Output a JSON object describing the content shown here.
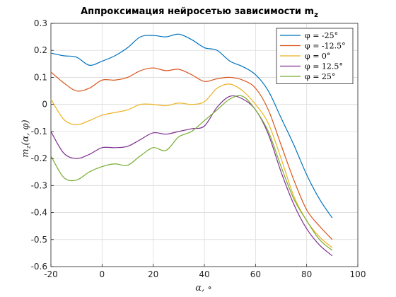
{
  "chart_data": {
    "type": "line",
    "title": "Аппроксимация нейросетью зависимости m",
    "title_subscript": "z",
    "xlabel": "α, ∘",
    "ylabel": "m",
    "ylabel_subscript": "z",
    "ylabel_args": "(α, φ)",
    "xlim": [
      -20,
      100
    ],
    "ylim": [
      -0.6,
      0.3
    ],
    "xticks": [
      -20,
      0,
      20,
      40,
      60,
      80,
      100
    ],
    "xtick_labels": [
      "-20",
      "0",
      "20",
      "40",
      "60",
      "80",
      "100"
    ],
    "yticks": [
      -0.6,
      -0.5,
      -0.4,
      -0.3,
      -0.2,
      -0.1,
      0,
      0.1,
      0.2,
      0.3
    ],
    "ytick_labels": [
      "-0.6",
      "-0.5",
      "-0.4",
      "-0.3",
      "-0.2",
      "-0.1",
      "0",
      "0.1",
      "0.2",
      "0.3"
    ],
    "grid": true,
    "legend_position": "top-right",
    "x": [
      -20,
      -15,
      -10,
      -5,
      0,
      5,
      10,
      15,
      20,
      25,
      30,
      35,
      40,
      45,
      50,
      55,
      60,
      65,
      70,
      75,
      80,
      85,
      90
    ],
    "series": [
      {
        "name": "φ = -25°",
        "color": "#0072BD",
        "values": [
          0.19,
          0.18,
          0.175,
          0.145,
          0.16,
          0.18,
          0.21,
          0.25,
          0.255,
          0.25,
          0.26,
          0.24,
          0.21,
          0.2,
          0.16,
          0.14,
          0.11,
          0.05,
          -0.05,
          -0.15,
          -0.26,
          -0.35,
          -0.42
        ]
      },
      {
        "name": "φ = -12.5°",
        "color": "#D95319",
        "values": [
          0.12,
          0.08,
          0.05,
          0.06,
          0.09,
          0.09,
          0.1,
          0.125,
          0.135,
          0.125,
          0.13,
          0.11,
          0.085,
          0.095,
          0.1,
          0.09,
          0.06,
          -0.02,
          -0.15,
          -0.28,
          -0.39,
          -0.45,
          -0.5
        ]
      },
      {
        "name": "φ = 0°",
        "color": "#EDB120",
        "values": [
          0.02,
          -0.055,
          -0.075,
          -0.06,
          -0.04,
          -0.03,
          -0.02,
          0.0,
          0.0,
          -0.005,
          0.005,
          0.0,
          0.01,
          0.06,
          0.075,
          0.05,
          0.0,
          -0.07,
          -0.2,
          -0.34,
          -0.43,
          -0.49,
          -0.53
        ]
      },
      {
        "name": "φ = 12.5°",
        "color": "#7E2F8E",
        "values": [
          -0.1,
          -0.18,
          -0.2,
          -0.185,
          -0.16,
          -0.16,
          -0.155,
          -0.13,
          -0.105,
          -0.11,
          -0.1,
          -0.09,
          -0.08,
          -0.01,
          0.03,
          0.02,
          -0.02,
          -0.11,
          -0.25,
          -0.37,
          -0.46,
          -0.52,
          -0.56
        ]
      },
      {
        "name": "φ = 25°",
        "color": "#77AC30",
        "values": [
          -0.19,
          -0.27,
          -0.28,
          -0.25,
          -0.23,
          -0.22,
          -0.225,
          -0.19,
          -0.16,
          -0.17,
          -0.12,
          -0.1,
          -0.06,
          -0.02,
          0.02,
          0.03,
          -0.02,
          -0.1,
          -0.23,
          -0.35,
          -0.43,
          -0.5,
          -0.54
        ]
      }
    ]
  }
}
